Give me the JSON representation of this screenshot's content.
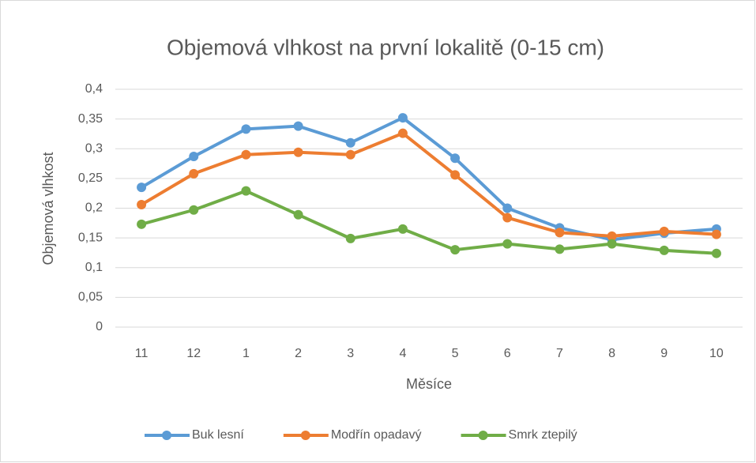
{
  "chart_data": {
    "type": "line",
    "title": "Objemová vlhkost na první lokalitě (0-15 cm)",
    "x_label": "Měsíce",
    "y_label": "Objemová vlhkost",
    "categories": [
      "11",
      "12",
      "1",
      "2",
      "3",
      "4",
      "5",
      "6",
      "7",
      "8",
      "9",
      "10"
    ],
    "series": [
      {
        "name": "Buk lesní",
        "color": "#5b9bd5",
        "values": [
          0.235,
          0.287,
          0.333,
          0.338,
          0.31,
          0.352,
          0.284,
          0.2,
          0.167,
          0.147,
          0.158,
          0.165
        ]
      },
      {
        "name": "Modřín opadavý",
        "color": "#ed7d31",
        "values": [
          0.206,
          0.258,
          0.29,
          0.294,
          0.29,
          0.326,
          0.256,
          0.184,
          0.159,
          0.153,
          0.161,
          0.156
        ]
      },
      {
        "name": "Smrk ztepilý",
        "color": "#70ad47",
        "values": [
          0.173,
          0.197,
          0.229,
          0.189,
          0.149,
          0.165,
          0.13,
          0.14,
          0.131,
          0.14,
          0.129,
          0.124
        ]
      }
    ],
    "ylim": [
      0,
      0.4
    ],
    "yticks": [
      0,
      {
        "value": 0.05,
        "label": "0,05"
      },
      {
        "value": 0.1,
        "label": "0,1"
      },
      {
        "value": 0.15,
        "label": "0,15"
      },
      {
        "value": 0.2,
        "label": "0,2"
      },
      {
        "value": 0.25,
        "label": "0,25"
      },
      {
        "value": 0.3,
        "label": "0,3"
      },
      {
        "value": 0.35,
        "label": "0,35"
      },
      {
        "value": 0.4,
        "label": "0,4"
      }
    ],
    "grid": true,
    "legend": "bottom"
  }
}
